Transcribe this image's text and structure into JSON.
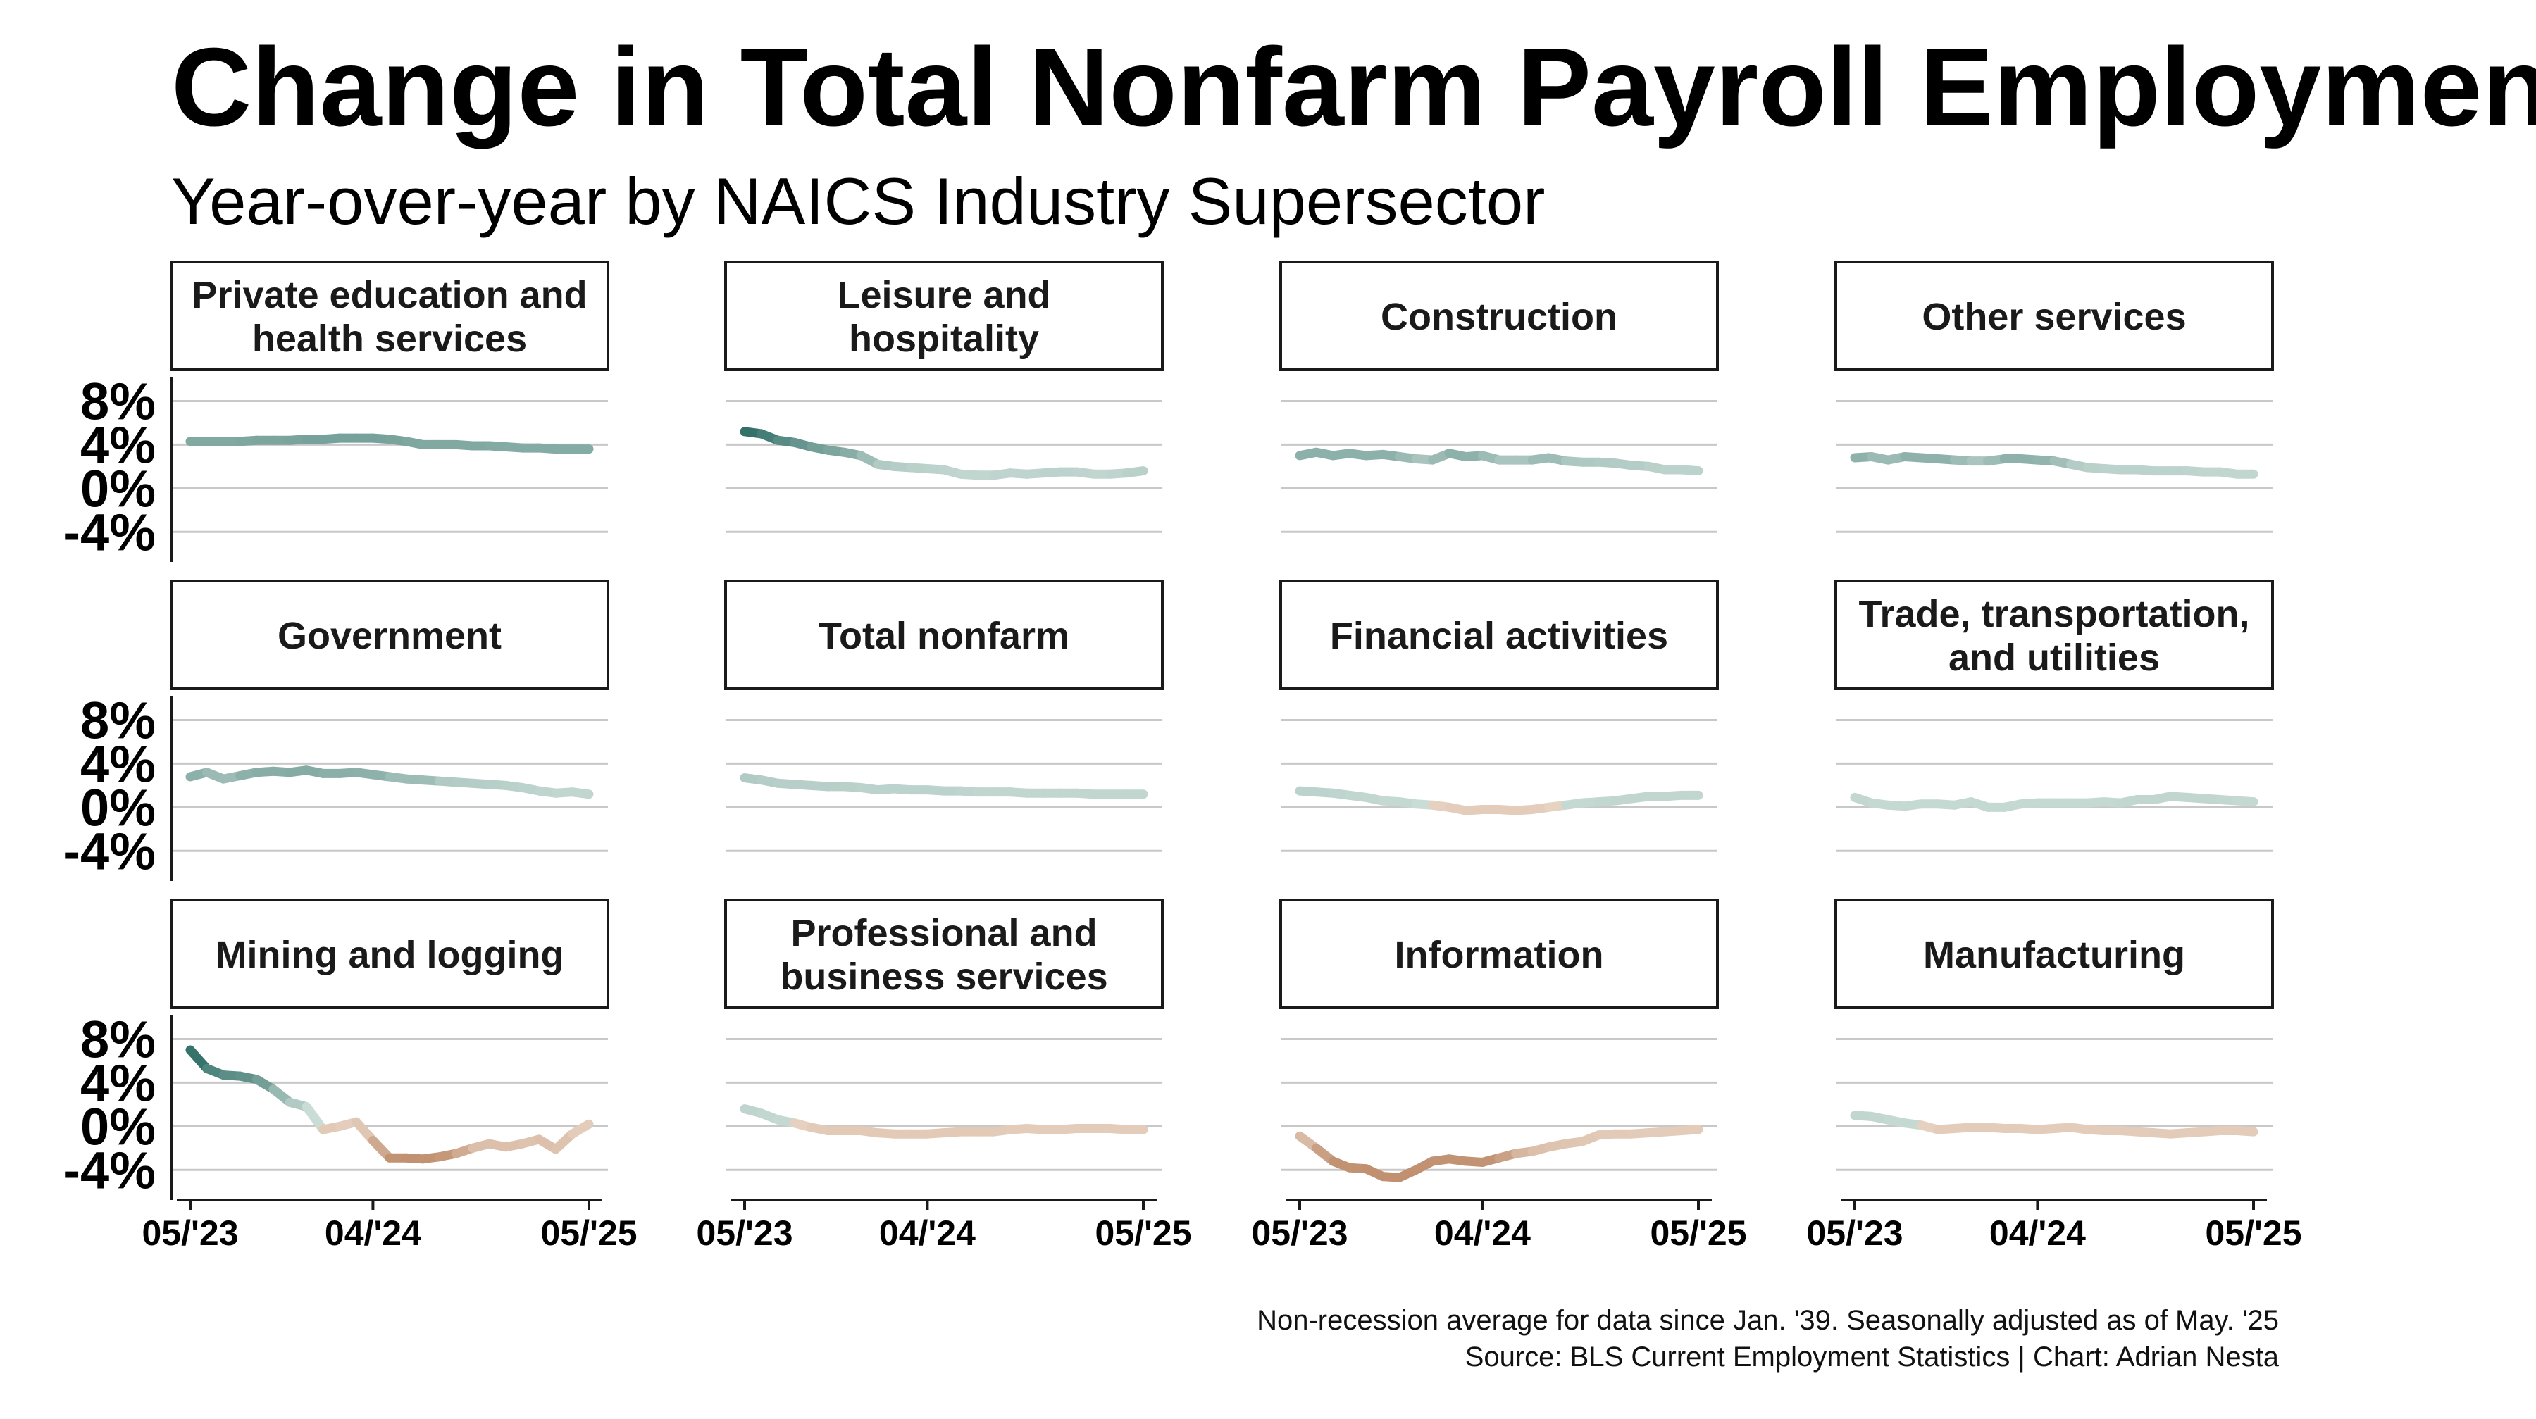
{
  "title": "Change in Total Nonfarm Payroll Employment",
  "subtitle": "Year-over-year by NAICS Industry Supersector",
  "caption_line1": "Non-recession average for data since Jan. '39. Seasonally adjusted as of May. '25",
  "caption_line2": "Source: BLS Current Employment Statistics | Chart: Adrian Nesta",
  "chart_data": {
    "type": "line",
    "layout": "small-multiples 3x4",
    "x_start": "2023-05",
    "x_end": "2025-05",
    "x_ticks": [
      "05/'23",
      "04/'24",
      "05/'25"
    ],
    "y_ticks": [
      "8%",
      "4%",
      "0%",
      "-4%"
    ],
    "y_tick_values": [
      8,
      4,
      0,
      -4
    ],
    "ylim": [
      -6.5,
      9
    ],
    "color_scale": {
      "low": "#c09070",
      "mid_low": "#e8d4c4",
      "mid_high": "#cadcd6",
      "high": "#2e6e66",
      "meaning": "line color shows difference from non-recession average"
    },
    "panels": [
      {
        "label": "Private education and health services",
        "label_lines": [
          "Private education and",
          "health services"
        ],
        "values": [
          4.3,
          4.3,
          4.3,
          4.3,
          4.4,
          4.4,
          4.4,
          4.5,
          4.5,
          4.6,
          4.6,
          4.6,
          4.5,
          4.3,
          4.0,
          4.0,
          4.0,
          3.9,
          3.9,
          3.8,
          3.7,
          3.7,
          3.6,
          3.6,
          3.6
        ],
        "diff": [
          1.6,
          1.6,
          1.6,
          1.6,
          1.7,
          1.7,
          1.7,
          1.8,
          1.8,
          1.8,
          1.8,
          1.8,
          1.8,
          1.7,
          1.6,
          1.6,
          1.6,
          1.6,
          1.6,
          1.5,
          1.5,
          1.5,
          1.5,
          1.5,
          1.5
        ]
      },
      {
        "label": "Leisure and hospitality",
        "label_lines": [
          "Leisure and",
          "hospitality"
        ],
        "values": [
          5.2,
          5.0,
          4.4,
          4.2,
          3.8,
          3.5,
          3.3,
          3.0,
          2.2,
          2.0,
          1.9,
          1.8,
          1.7,
          1.3,
          1.2,
          1.2,
          1.4,
          1.3,
          1.4,
          1.5,
          1.5,
          1.3,
          1.3,
          1.4,
          1.6
        ],
        "diff": [
          3.4,
          3.2,
          2.6,
          2.4,
          2.0,
          1.8,
          1.6,
          1.3,
          0.6,
          0.5,
          0.4,
          0.3,
          0.3,
          0.2,
          0.2,
          0.2,
          0.3,
          0.2,
          0.3,
          0.3,
          0.3,
          0.2,
          0.2,
          0.3,
          0.4
        ]
      },
      {
        "label": "Construction",
        "label_lines": [
          "Construction"
        ],
        "values": [
          3.0,
          3.3,
          3.0,
          3.2,
          3.0,
          3.1,
          2.9,
          2.7,
          2.6,
          3.2,
          2.9,
          3.0,
          2.6,
          2.6,
          2.6,
          2.8,
          2.5,
          2.4,
          2.4,
          2.3,
          2.1,
          2.0,
          1.7,
          1.7,
          1.6
        ],
        "diff": [
          1.3,
          1.4,
          1.3,
          1.4,
          1.3,
          1.4,
          1.3,
          0.8,
          0.7,
          1.4,
          1.3,
          1.3,
          0.7,
          0.7,
          0.7,
          1.3,
          0.7,
          0.6,
          0.6,
          0.5,
          0.5,
          0.4,
          0.3,
          0.3,
          0.3
        ]
      },
      {
        "label": "Other services",
        "label_lines": [
          "Other services"
        ],
        "values": [
          2.8,
          2.9,
          2.6,
          2.9,
          2.8,
          2.7,
          2.6,
          2.5,
          2.5,
          2.7,
          2.7,
          2.6,
          2.5,
          2.2,
          1.9,
          1.8,
          1.7,
          1.7,
          1.6,
          1.6,
          1.6,
          1.5,
          1.5,
          1.3,
          1.3
        ],
        "diff": [
          1.3,
          1.3,
          0.8,
          1.3,
          1.3,
          1.3,
          1.3,
          0.7,
          0.7,
          1.3,
          1.3,
          1.3,
          1.2,
          0.6,
          0.4,
          0.3,
          0.3,
          0.3,
          0.3,
          0.3,
          0.3,
          0.2,
          0.2,
          0.2,
          0.2
        ]
      },
      {
        "label": "Government",
        "label_lines": [
          "Government"
        ],
        "values": [
          2.8,
          3.2,
          2.6,
          2.9,
          3.2,
          3.3,
          3.2,
          3.4,
          3.1,
          3.1,
          3.2,
          3.0,
          2.8,
          2.6,
          2.5,
          2.4,
          2.3,
          2.2,
          2.1,
          2.0,
          1.8,
          1.5,
          1.3,
          1.4,
          1.2
        ],
        "diff": [
          1.3,
          1.4,
          0.7,
          1.3,
          1.4,
          1.5,
          1.4,
          1.6,
          1.4,
          1.4,
          1.4,
          1.3,
          1.3,
          0.7,
          1.3,
          0.6,
          0.5,
          0.5,
          0.4,
          0.4,
          0.3,
          0.3,
          0.2,
          0.2,
          0.2
        ]
      },
      {
        "label": "Total nonfarm",
        "label_lines": [
          "Total nonfarm"
        ],
        "values": [
          2.7,
          2.5,
          2.2,
          2.1,
          2.0,
          1.9,
          1.9,
          1.8,
          1.6,
          1.7,
          1.6,
          1.6,
          1.5,
          1.5,
          1.4,
          1.4,
          1.4,
          1.3,
          1.3,
          1.3,
          1.3,
          1.2,
          1.2,
          1.2,
          1.2
        ],
        "diff": [
          0.6,
          0.5,
          0.4,
          0.4,
          0.4,
          0.4,
          0.4,
          0.3,
          0.3,
          0.3,
          0.3,
          0.3,
          0.3,
          0.3,
          0.2,
          0.2,
          0.2,
          0.2,
          0.2,
          0.2,
          0.2,
          0.2,
          0.2,
          0.2,
          0.2
        ]
      },
      {
        "label": "Financial activities",
        "label_lines": [
          "Financial activities"
        ],
        "values": [
          1.5,
          1.4,
          1.3,
          1.1,
          0.9,
          0.6,
          0.5,
          0.3,
          0.2,
          0.0,
          -0.3,
          -0.2,
          -0.2,
          -0.3,
          -0.2,
          0.0,
          0.2,
          0.4,
          0.5,
          0.6,
          0.8,
          1.0,
          1.0,
          1.1,
          1.1
        ],
        "diff": [
          0.3,
          0.3,
          0.3,
          0.2,
          0.2,
          0.1,
          0.1,
          0.1,
          -0.1,
          -0.2,
          -0.3,
          -0.3,
          -0.3,
          -0.3,
          -0.3,
          -0.2,
          0.1,
          0.1,
          0.1,
          0.2,
          0.2,
          0.2,
          0.2,
          0.2,
          0.2
        ]
      },
      {
        "label": "Trade, transportation, and utilities",
        "label_lines": [
          "Trade, transportation,",
          "and utilities"
        ],
        "values": [
          0.9,
          0.4,
          0.2,
          0.1,
          0.3,
          0.3,
          0.2,
          0.5,
          0.0,
          0.0,
          0.3,
          0.4,
          0.4,
          0.4,
          0.4,
          0.5,
          0.4,
          0.7,
          0.7,
          1.0,
          0.9,
          0.8,
          0.7,
          0.6,
          0.5
        ],
        "diff": [
          0.2,
          0.1,
          0.1,
          0.1,
          0.1,
          0.1,
          0.1,
          0.1,
          0.1,
          0.1,
          0.1,
          0.1,
          0.1,
          0.1,
          0.1,
          0.1,
          0.1,
          0.2,
          0.2,
          0.2,
          0.2,
          0.2,
          0.2,
          0.1,
          0.1
        ]
      },
      {
        "label": "Mining and logging",
        "label_lines": [
          "Mining and logging"
        ],
        "values": [
          7.0,
          5.3,
          4.7,
          4.6,
          4.3,
          3.4,
          2.2,
          1.8,
          -0.3,
          0.0,
          0.4,
          -1.3,
          -2.9,
          -2.9,
          -3.0,
          -2.8,
          -2.5,
          -2.0,
          -1.6,
          -1.9,
          -1.6,
          -1.2,
          -2.1,
          -0.7,
          0.2
        ],
        "diff": [
          3.5,
          3.0,
          2.4,
          2.4,
          2.2,
          1.6,
          0.6,
          0.5,
          -0.5,
          -0.3,
          -0.2,
          -0.8,
          -2.5,
          -2.5,
          -2.6,
          -2.4,
          -2.2,
          -0.9,
          -0.7,
          -0.8,
          -0.7,
          -0.6,
          -0.9,
          -0.4,
          -0.2
        ]
      },
      {
        "label": "Professional and business services",
        "label_lines": [
          "Professional and",
          "business services"
        ],
        "values": [
          1.6,
          1.2,
          0.6,
          0.3,
          -0.1,
          -0.4,
          -0.4,
          -0.4,
          -0.6,
          -0.7,
          -0.7,
          -0.7,
          -0.6,
          -0.5,
          -0.5,
          -0.5,
          -0.3,
          -0.2,
          -0.3,
          -0.3,
          -0.2,
          -0.2,
          -0.2,
          -0.3,
          -0.3
        ],
        "diff": [
          0.3,
          0.2,
          0.1,
          0.1,
          -0.3,
          -0.4,
          -0.4,
          -0.4,
          -0.4,
          -0.4,
          -0.4,
          -0.4,
          -0.4,
          -0.4,
          -0.4,
          -0.4,
          -0.3,
          -0.3,
          -0.3,
          -0.3,
          -0.3,
          -0.3,
          -0.3,
          -0.3,
          -0.3
        ]
      },
      {
        "label": "Information",
        "label_lines": [
          "Information"
        ],
        "values": [
          -0.9,
          -2.0,
          -3.2,
          -3.8,
          -3.9,
          -4.6,
          -4.7,
          -4.0,
          -3.2,
          -3.0,
          -3.2,
          -3.3,
          -2.9,
          -2.5,
          -2.3,
          -1.9,
          -1.6,
          -1.4,
          -0.8,
          -0.7,
          -0.7,
          -0.6,
          -0.5,
          -0.4,
          -0.3
        ],
        "diff": [
          -0.5,
          -1.5,
          -2.5,
          -2.5,
          -2.5,
          -2.7,
          -2.7,
          -2.6,
          -2.5,
          -2.5,
          -2.5,
          -2.5,
          -2.4,
          -1.5,
          -0.8,
          -0.7,
          -0.6,
          -0.5,
          -0.4,
          -0.4,
          -0.4,
          -0.3,
          -0.3,
          -0.3,
          -0.3
        ]
      },
      {
        "label": "Manufacturing",
        "label_lines": [
          "Manufacturing"
        ],
        "values": [
          1.0,
          0.9,
          0.6,
          0.3,
          0.1,
          -0.3,
          -0.2,
          -0.1,
          -0.1,
          -0.2,
          -0.2,
          -0.3,
          -0.2,
          -0.1,
          -0.3,
          -0.4,
          -0.4,
          -0.5,
          -0.6,
          -0.7,
          -0.6,
          -0.5,
          -0.4,
          -0.4,
          -0.5
        ],
        "diff": [
          0.2,
          0.2,
          0.1,
          0.1,
          0.1,
          -0.3,
          -0.3,
          -0.3,
          -0.3,
          -0.3,
          -0.3,
          -0.3,
          -0.3,
          -0.3,
          -0.3,
          -0.3,
          -0.3,
          -0.3,
          -0.3,
          -0.4,
          -0.3,
          -0.3,
          -0.3,
          -0.3,
          -0.3
        ]
      }
    ]
  }
}
